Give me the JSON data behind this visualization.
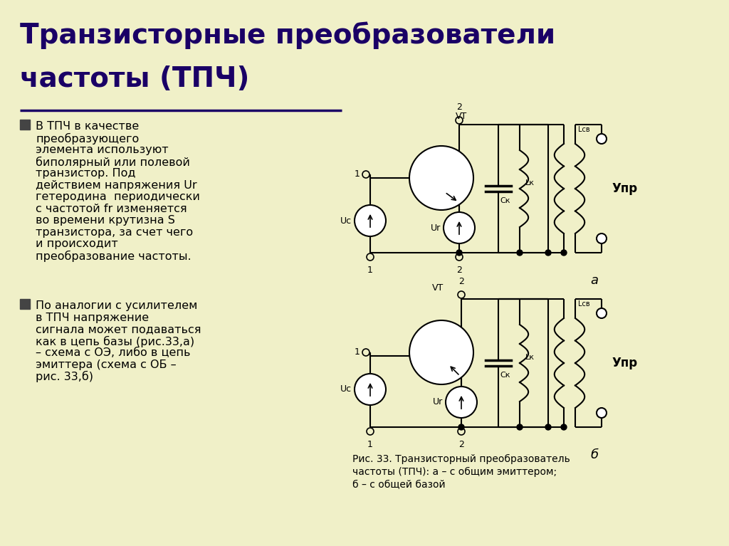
{
  "bg_color": "#f0f0c8",
  "title_line1": "Транзисторные преобразователи",
  "title_line2": "частоты (ТПЧ)",
  "title_color": "#1a0066",
  "title_fontsize": 28,
  "body_fontsize": 11.5,
  "caption_fontsize": 10,
  "text_color": "#000000",
  "divider_color": "#1a0066",
  "bullet1_lines": [
    "В ТПЧ в качестве",
    "преобразующего",
    "элемента используют",
    "биполярный или полевой",
    "транзистор. Под",
    "действием напряжения Ur",
    "гетеродина  периодически",
    "с частотой fr изменяется",
    "во времени крутизна S",
    "транзистора, за счет чего",
    "и происходит",
    "преобразование частоты."
  ],
  "bullet2_lines": [
    "По аналогии с усилителем",
    "в ТПЧ напряжение",
    "сигнала может подаваться",
    "как в цепь базы (рис.33,а)",
    "– схема с ОЭ, либо в цепь",
    "эмиттера (схема с ОБ –",
    "рис. 33,б)"
  ],
  "caption_lines": [
    "Рис. 33. Транзисторный преобразователь",
    "частоты (ТПЧ): а – с общим эмиттером;",
    "б – с общей базой"
  ]
}
